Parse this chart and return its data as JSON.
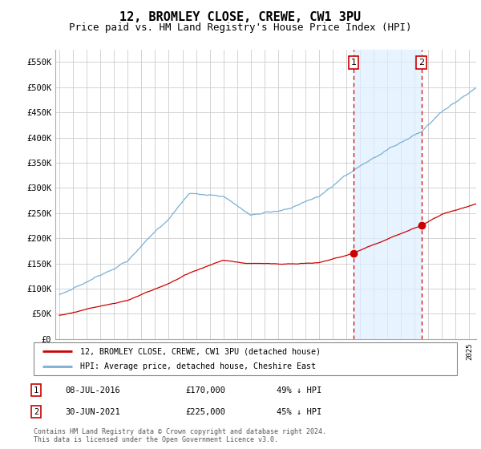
{
  "title": "12, BROMLEY CLOSE, CREWE, CW1 3PU",
  "subtitle": "Price paid vs. HM Land Registry's House Price Index (HPI)",
  "title_fontsize": 11,
  "subtitle_fontsize": 9,
  "ylabel_ticks": [
    "£0",
    "£50K",
    "£100K",
    "£150K",
    "£200K",
    "£250K",
    "£300K",
    "£350K",
    "£400K",
    "£450K",
    "£500K",
    "£550K"
  ],
  "ytick_vals": [
    0,
    50000,
    100000,
    150000,
    200000,
    250000,
    300000,
    350000,
    400000,
    450000,
    500000,
    550000
  ],
  "ylim": [
    0,
    575000
  ],
  "xlim_start": 1994.7,
  "xlim_end": 2025.5,
  "sale1_x": 2016.52,
  "sale1_y": 170000,
  "sale2_x": 2021.49,
  "sale2_y": 225000,
  "line_red_color": "#cc0000",
  "line_blue_color": "#7aafd4",
  "shade_color": "#ddeeff",
  "marker_box_color": "#cc0000",
  "grid_color": "#cccccc",
  "bg_color": "#ffffff",
  "legend_line1": "12, BROMLEY CLOSE, CREWE, CW1 3PU (detached house)",
  "legend_line2": "HPI: Average price, detached house, Cheshire East",
  "table_row1": [
    "1",
    "08-JUL-2016",
    "£170,000",
    "49% ↓ HPI"
  ],
  "table_row2": [
    "2",
    "30-JUN-2021",
    "£225,000",
    "45% ↓ HPI"
  ],
  "footer": "Contains HM Land Registry data © Crown copyright and database right 2024.\nThis data is licensed under the Open Government Licence v3.0."
}
